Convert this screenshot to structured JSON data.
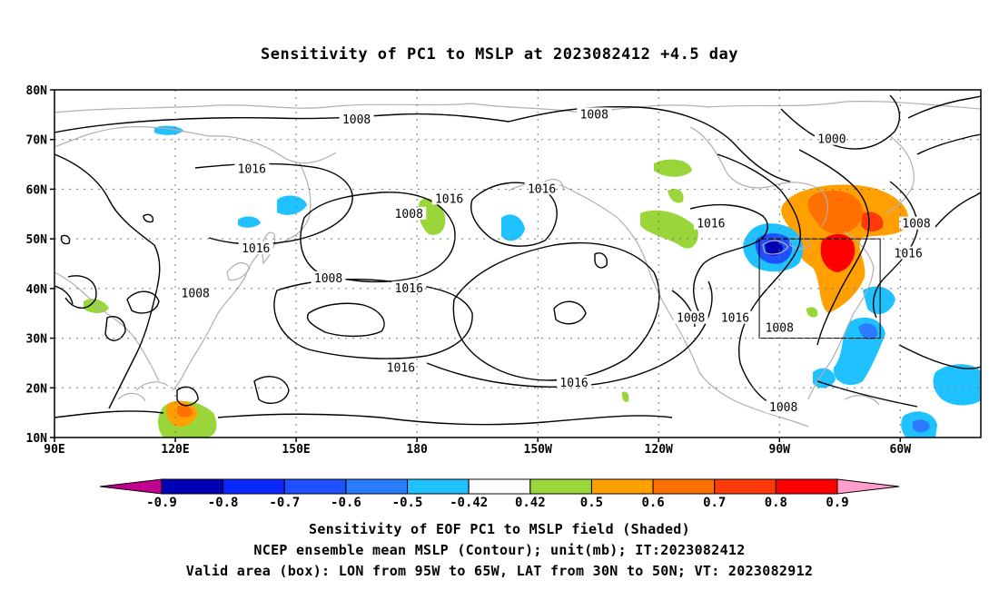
{
  "title": "Sensitivity of PC1 to MSLP at 2023082412 +4.5 day",
  "map": {
    "lat_ticks": [
      "80N",
      "70N",
      "60N",
      "50N",
      "40N",
      "30N",
      "20N",
      "10N"
    ],
    "lon_ticks": [
      "90E",
      "120E",
      "150E",
      "180",
      "150W",
      "120W",
      "90W",
      "60W"
    ],
    "lon_range": [
      90,
      320
    ],
    "lat_range": [
      10,
      80
    ],
    "gridlines": "dotted",
    "coastline_color": "#b0b0b0",
    "contour_color": "#000000",
    "contour_labels": [
      {
        "text": "1008",
        "lon": 165,
        "lat": 74
      },
      {
        "text": "1008",
        "lon": 224,
        "lat": 75
      },
      {
        "text": "1000",
        "lon": 283,
        "lat": 70
      },
      {
        "text": "1016",
        "lon": 139,
        "lat": 64
      },
      {
        "text": "1016",
        "lon": 188,
        "lat": 58
      },
      {
        "text": "1016",
        "lon": 211,
        "lat": 60
      },
      {
        "text": "1008",
        "lon": 178,
        "lat": 55
      },
      {
        "text": "1016",
        "lon": 253,
        "lat": 53
      },
      {
        "text": "1008",
        "lon": 304,
        "lat": 53
      },
      {
        "text": "1016",
        "lon": 140,
        "lat": 48
      },
      {
        "text": "1016",
        "lon": 302,
        "lat": 47
      },
      {
        "text": "1008",
        "lon": 158,
        "lat": 42
      },
      {
        "text": "1016",
        "lon": 178,
        "lat": 40
      },
      {
        "text": "1008",
        "lon": 125,
        "lat": 39
      },
      {
        "text": "1008",
        "lon": 248,
        "lat": 34
      },
      {
        "text": "1016",
        "lon": 259,
        "lat": 34
      },
      {
        "text": "1008",
        "lon": 270,
        "lat": 32
      },
      {
        "text": "1016",
        "lon": 176,
        "lat": 24
      },
      {
        "text": "1016",
        "lon": 219,
        "lat": 21
      },
      {
        "text": "1008",
        "lon": 271,
        "lat": 16
      }
    ],
    "valid_box": {
      "lon_min": 265,
      "lon_max": 295,
      "lat_min": 30,
      "lat_max": 50
    }
  },
  "colorbar": {
    "labels": [
      "-0.9",
      "-0.8",
      "-0.7",
      "-0.6",
      "-0.5",
      "-0.42",
      "0.42",
      "0.5",
      "0.6",
      "0.7",
      "0.8",
      "0.9"
    ],
    "colors": [
      "#c0008f",
      "#0000b4",
      "#0a28ff",
      "#1f50ff",
      "#2b7bff",
      "#1fc1ff",
      "#ffffff",
      "#9ad53a",
      "#ffa000",
      "#ff7000",
      "#ff3a0a",
      "#ff0000",
      "#ff9ec8"
    ]
  },
  "captions": [
    "Sensitivity of EOF PC1 to MSLP field (Shaded)",
    "NCEP ensemble mean MSLP (Contour); unit(mb); IT:2023082412",
    "Valid area (box): LON from 95W to 65W, LAT from 30N to 50N; VT: 2023082912"
  ]
}
